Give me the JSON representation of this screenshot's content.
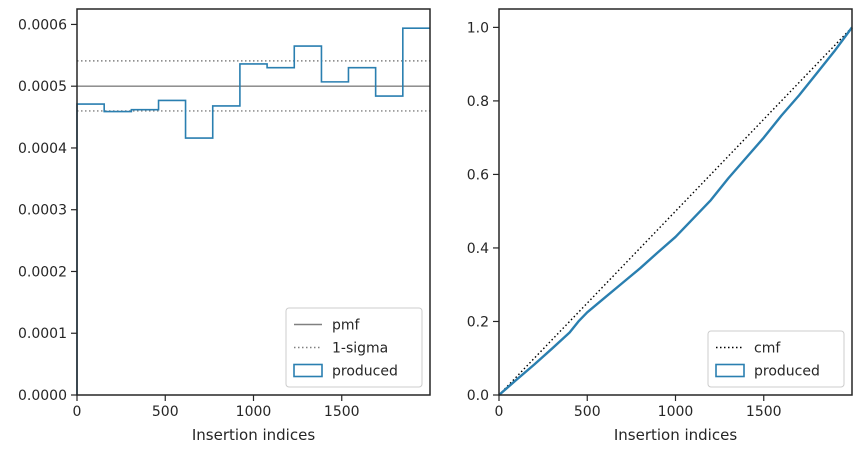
{
  "colors": {
    "produced": "#2a7fb0",
    "reference": "#808080",
    "cmf": "#000000",
    "axes": "#262626"
  },
  "chart_data": [
    {
      "type": "step",
      "xlabel": "Insertion indices",
      "ylabel": "",
      "xlim": [
        0,
        2000
      ],
      "ylim": [
        0,
        0.000625
      ],
      "x_ticks": [
        0,
        500,
        1000,
        1500
      ],
      "x_tick_labels": [
        "0",
        "500",
        "1000",
        "1500"
      ],
      "y_ticks": [
        0,
        0.0001,
        0.0002,
        0.0003,
        0.0004,
        0.0005,
        0.0006
      ],
      "y_tick_labels": [
        "0.0000",
        "0.0001",
        "0.0002",
        "0.0003",
        "0.0004",
        "0.0005",
        "0.0006"
      ],
      "legend_position": "lower right",
      "pmf": 0.0005,
      "sigma_band": [
        0.00046,
        0.000541
      ],
      "bin_edges": [
        0,
        154,
        308,
        462,
        615,
        769,
        923,
        1077,
        1231,
        1385,
        1538,
        1692,
        1846,
        2000
      ],
      "produced_values": [
        0.000471,
        0.000459,
        0.000462,
        0.000477,
        0.000416,
        0.000468,
        0.000536,
        0.00053,
        0.000565,
        0.000507,
        0.00053,
        0.000484,
        0.000594
      ],
      "legend": [
        {
          "label": "pmf",
          "style": "solid",
          "color": "#808080"
        },
        {
          "label": "1-sigma",
          "style": "dotted",
          "color": "#808080"
        },
        {
          "label": "produced",
          "style": "box",
          "color": "#2a7fb0"
        }
      ]
    },
    {
      "type": "line",
      "xlabel": "Insertion indices",
      "ylabel": "",
      "xlim": [
        0,
        2000
      ],
      "ylim": [
        0,
        1.05
      ],
      "x_ticks": [
        0,
        500,
        1000,
        1500
      ],
      "x_tick_labels": [
        "0",
        "500",
        "1000",
        "1500"
      ],
      "y_ticks": [
        0,
        0.2,
        0.4,
        0.6,
        0.8,
        1.0
      ],
      "y_tick_labels": [
        "0.0",
        "0.2",
        "0.4",
        "0.6",
        "0.8",
        "1.0"
      ],
      "legend_position": "lower right",
      "cmf": {
        "x": [
          0,
          2000
        ],
        "y": [
          0,
          1.0
        ]
      },
      "produced": {
        "x": [
          0,
          100,
          200,
          300,
          400,
          450,
          500,
          600,
          700,
          800,
          900,
          1000,
          1100,
          1200,
          1300,
          1400,
          1500,
          1600,
          1700,
          1800,
          1900,
          2000
        ],
        "y": [
          0,
          0.042,
          0.083,
          0.126,
          0.17,
          0.2,
          0.225,
          0.265,
          0.305,
          0.345,
          0.388,
          0.43,
          0.48,
          0.53,
          0.59,
          0.645,
          0.7,
          0.76,
          0.815,
          0.875,
          0.935,
          1.0
        ]
      },
      "legend": [
        {
          "label": "cmf",
          "style": "dotted",
          "color": "#000000"
        },
        {
          "label": "produced",
          "style": "box",
          "color": "#2a7fb0"
        }
      ]
    }
  ]
}
